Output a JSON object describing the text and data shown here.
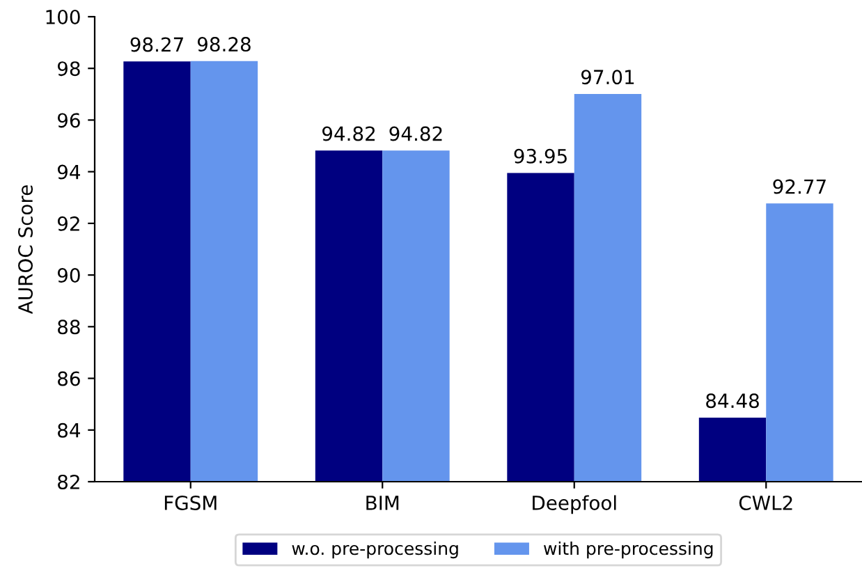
{
  "chart_data": {
    "type": "bar",
    "ylabel": "AUROC Score",
    "categories": [
      "FGSM",
      "BIM",
      "Deepfool",
      "CWL2"
    ],
    "series": [
      {
        "name": "w.o. pre-processing",
        "color": "#000080",
        "values": [
          98.27,
          94.82,
          93.95,
          84.48
        ]
      },
      {
        "name": "with pre-processing",
        "color": "#6495ed",
        "values": [
          98.28,
          94.82,
          97.01,
          92.77
        ]
      }
    ],
    "ylim": [
      82,
      100
    ],
    "yticks": [
      82,
      84,
      86,
      88,
      90,
      92,
      94,
      96,
      98,
      100
    ],
    "data_labels": true,
    "grid": false,
    "legend": "bottom"
  }
}
